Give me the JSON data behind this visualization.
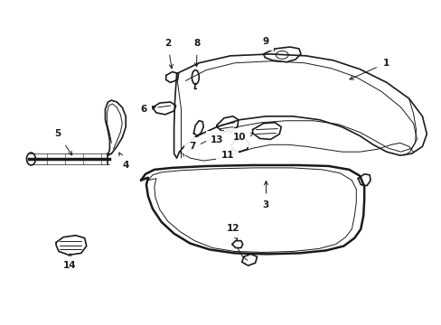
{
  "bg_color": "#ffffff",
  "line_color": "#1a1a1a",
  "fig_width": 4.89,
  "fig_height": 3.6,
  "dpi": 100,
  "font_size": 7.5,
  "lw": 1.2,
  "tlw": 0.7
}
